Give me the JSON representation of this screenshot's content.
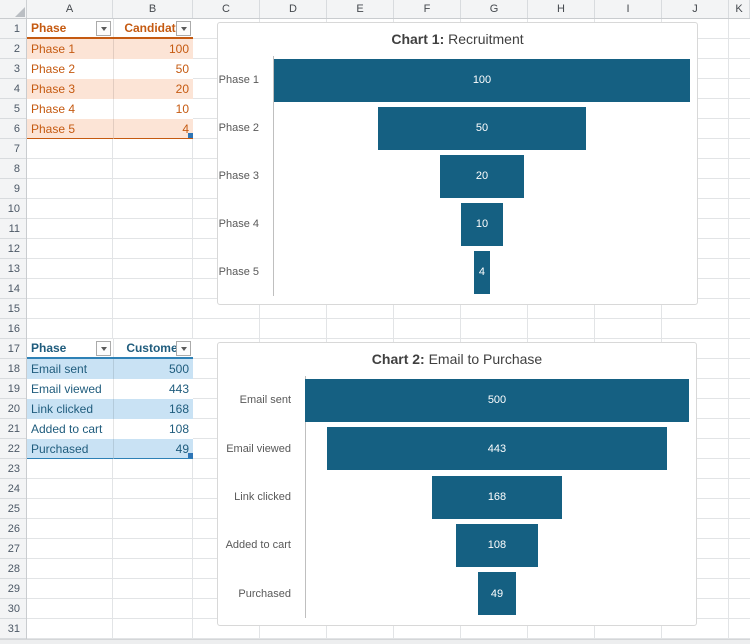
{
  "grid": {
    "column_labels": [
      "A",
      "B",
      "C",
      "D",
      "E",
      "F",
      "G",
      "H",
      "I",
      "J",
      "K"
    ],
    "row_labels": [
      "1",
      "2",
      "3",
      "4",
      "5",
      "6",
      "7",
      "8",
      "9",
      "10",
      "11",
      "12",
      "13",
      "14",
      "15",
      "16",
      "17",
      "18",
      "19",
      "20",
      "21",
      "22",
      "23",
      "24",
      "25",
      "26",
      "27",
      "28",
      "29",
      "30",
      "31"
    ]
  },
  "tables": [
    {
      "name": "recruitment",
      "header": {
        "label_col": "Phase",
        "value_col": "Candidates"
      },
      "rows": [
        {
          "label": "Phase 1",
          "value": "100"
        },
        {
          "label": "Phase 2",
          "value": "50"
        },
        {
          "label": "Phase 3",
          "value": "20"
        },
        {
          "label": "Phase 4",
          "value": "10"
        },
        {
          "label": "Phase 5",
          "value": "4"
        }
      ],
      "style": {
        "accent_text": "#C55A11",
        "band_fill": "#FCE4D6",
        "header_underline": "#C55A11",
        "bottom_border": "#C55A11",
        "handle": "#2E75B6"
      }
    },
    {
      "name": "email",
      "header": {
        "label_col": "Phase",
        "value_col": "Customers"
      },
      "rows": [
        {
          "label": "Email sent",
          "value": "500"
        },
        {
          "label": "Email viewed",
          "value": "443"
        },
        {
          "label": "Link clicked",
          "value": "168"
        },
        {
          "label": "Added to cart",
          "value": "108"
        },
        {
          "label": "Purchased",
          "value": "49"
        }
      ],
      "style": {
        "accent_text": "#1F5C7D",
        "band_fill": "#C9E2F4",
        "header_underline": "#2E81B6",
        "bottom_border": "#2E81B6",
        "handle": "#2E75B6"
      }
    }
  ],
  "chart_data": [
    {
      "type": "bar",
      "subtype": "funnel",
      "title_bold": "Chart 1:",
      "title_rest": " Recruitment",
      "categories": [
        "Phase 1",
        "Phase 2",
        "Phase 3",
        "Phase 4",
        "Phase 5"
      ],
      "values": [
        100,
        50,
        20,
        10,
        4
      ],
      "data_labels": [
        "100",
        "50",
        "20",
        "10",
        "4"
      ],
      "xlim": [
        0,
        100
      ],
      "bar_color": "#156082",
      "title_color": "#404040",
      "category_color": "#595959",
      "value_label_color": "#FFFFFF",
      "legend": "none",
      "grid": "off"
    },
    {
      "type": "bar",
      "subtype": "funnel",
      "title_bold": "Chart 2:",
      "title_rest": " Email to Purchase",
      "categories": [
        "Email sent",
        "Email viewed",
        "Link clicked",
        "Added to cart",
        "Purchased"
      ],
      "values": [
        500,
        443,
        168,
        108,
        49
      ],
      "data_labels": [
        "500",
        "443",
        "168",
        "108",
        "49"
      ],
      "xlim": [
        0,
        500
      ],
      "bar_color": "#156082",
      "title_color": "#404040",
      "category_color": "#595959",
      "value_label_color": "#FFFFFF",
      "legend": "none",
      "grid": "off"
    }
  ]
}
